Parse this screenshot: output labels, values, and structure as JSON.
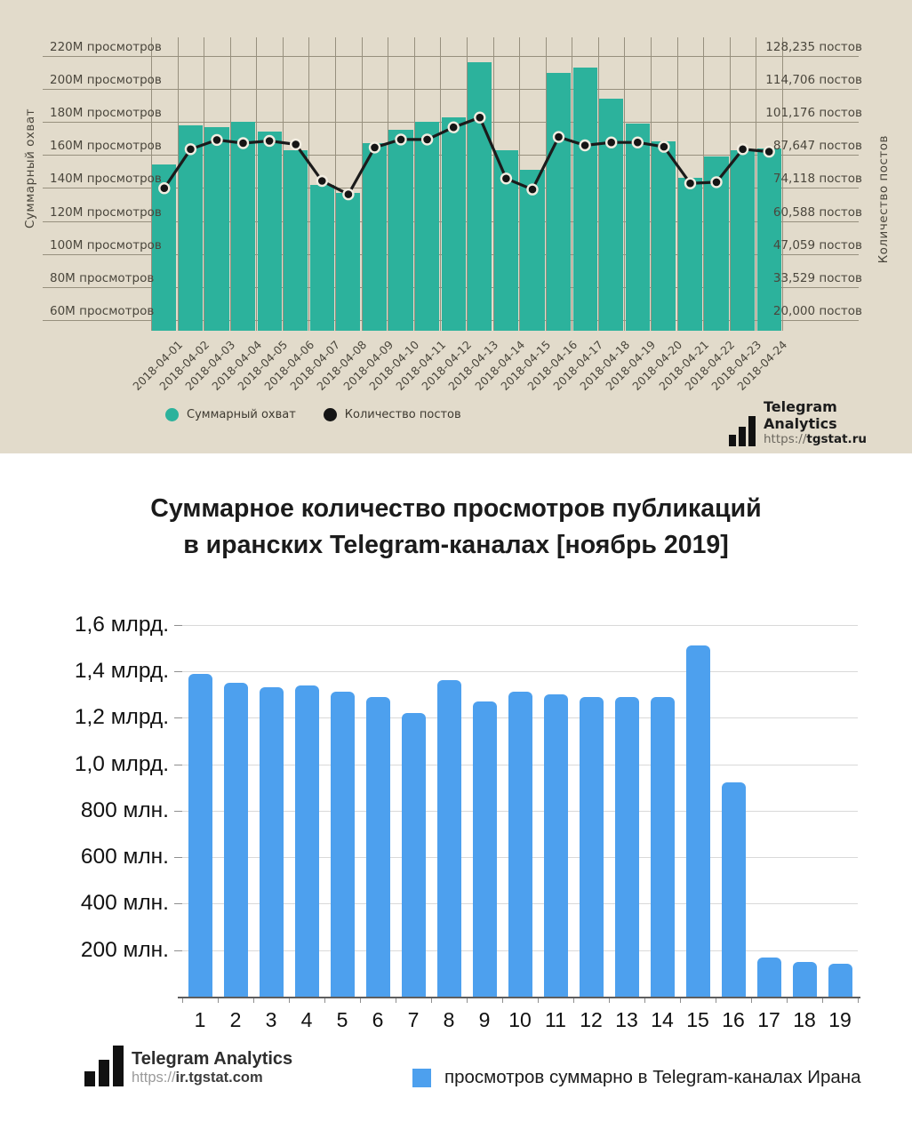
{
  "top": {
    "left_axis_title": "Суммарный охват",
    "right_axis_title": "Количество постов",
    "left_axis_labels": [
      "220M просмотров",
      "200M просмотров",
      "180M просмотров",
      "160M просмотров",
      "140M просмотров",
      "120M просмотров",
      "100M просмотров",
      "80M просмотров",
      "60M просмотров"
    ],
    "right_axis_labels": [
      "128,235 постов",
      "114,706 постов",
      "101,176 постов",
      "87,647 постов",
      "74,118 постов",
      "60,588 постов",
      "47,059 постов",
      "33,529 постов",
      "20,000 постов"
    ],
    "legend_items": [
      {
        "label": "Суммарный охват",
        "color": "#2cb29c"
      },
      {
        "label": "Количество постов",
        "color": "#151515"
      }
    ],
    "logo": {
      "name": "Telegram Analytics",
      "url_plain": "https://",
      "url_bold": "tgstat.ru"
    },
    "colors": {
      "background": "#e2dbcb",
      "bar": "#2cb29c",
      "line": "#1b1b1b",
      "grid": "#97907e",
      "text": "#4a463c"
    }
  },
  "bottom": {
    "title_line1": "Суммарное количество просмотров публикаций",
    "title_line2": "в иранских Telegram-каналах [ноябрь 2019]",
    "y_axis_labels": [
      "1,6 млрд.",
      "1,4 млрд.",
      "1,2 млрд.",
      "1,0 млрд.",
      "800 млн.",
      "600 млн.",
      "400 млн.",
      "200 млн."
    ],
    "legend_label": "просмотров суммарно в Telegram-каналах Ирана",
    "logo": {
      "name": "Telegram Analytics",
      "url_plain": "https://",
      "url_bold": "ir.tgstat.com"
    },
    "colors": {
      "background": "#ffffff",
      "bar": "#4da0ee",
      "grid": "#d9d9d9",
      "text": "#111111"
    }
  },
  "chart_data": [
    {
      "type": "bar",
      "subtype": "bar+line combo, dual axis",
      "title": "",
      "categories": [
        "2018-04-01",
        "2018-04-02",
        "2018-04-03",
        "2018-04-04",
        "2018-04-05",
        "2018-04-06",
        "2018-04-07",
        "2018-04-08",
        "2018-04-09",
        "2018-04-10",
        "2018-04-11",
        "2018-04-12",
        "2018-04-13",
        "2018-04-14",
        "2018-04-15",
        "2018-04-16",
        "2018-04-17",
        "2018-04-18",
        "2018-04-19",
        "2018-04-20",
        "2018-04-21",
        "2018-04-22",
        "2018-04-23",
        "2018-04-24"
      ],
      "series": [
        {
          "name": "Суммарный охват",
          "render": "bar",
          "axis": "left",
          "unit": "M просмотров",
          "values": [
            154,
            178,
            177,
            180,
            174,
            163,
            142,
            137,
            167,
            175,
            180,
            183,
            216,
            163,
            151,
            210,
            213,
            194,
            179,
            168,
            146,
            159,
            163,
            164
          ]
        },
        {
          "name": "Количество постов",
          "render": "line",
          "axis": "right",
          "unit": "постов",
          "values": [
            74000,
            90000,
            93800,
            92500,
            93400,
            92000,
            77000,
            71500,
            90700,
            94000,
            94000,
            99000,
            103000,
            78000,
            73500,
            95000,
            91600,
            92800,
            92800,
            91000,
            76000,
            76500,
            90000,
            89000
          ]
        }
      ],
      "left_axis": {
        "label": "Суммарный охват",
        "min": 60,
        "max": 220,
        "step": 20,
        "unit": "M просмотров"
      },
      "right_axis": {
        "label": "Количество постов",
        "ticks": [
          128235,
          114706,
          101176,
          87647,
          74118,
          60588,
          47059,
          33529,
          20000
        ]
      },
      "legend_position": "bottom-left",
      "grid": true
    },
    {
      "type": "bar",
      "title": "Суммарное количество просмотров публикаций в иранских Telegram-каналах [ноябрь 2019]",
      "categories": [
        "1",
        "2",
        "3",
        "4",
        "5",
        "6",
        "7",
        "8",
        "9",
        "10",
        "11",
        "12",
        "13",
        "14",
        "15",
        "16",
        "17",
        "18",
        "19"
      ],
      "values": [
        1.39,
        1.35,
        1.33,
        1.34,
        1.31,
        1.29,
        1.22,
        1.36,
        1.27,
        1.31,
        1.3,
        1.29,
        1.29,
        1.29,
        1.51,
        0.92,
        0.17,
        0.15,
        0.14
      ],
      "unit": "млрд просмотров",
      "ylabel": "",
      "xlabel": "",
      "ylim": [
        0,
        1.6
      ],
      "ystep": 0.2,
      "legend": "просмотров суммарно в Telegram-каналах Ирана",
      "legend_position": "bottom",
      "grid": true
    }
  ]
}
